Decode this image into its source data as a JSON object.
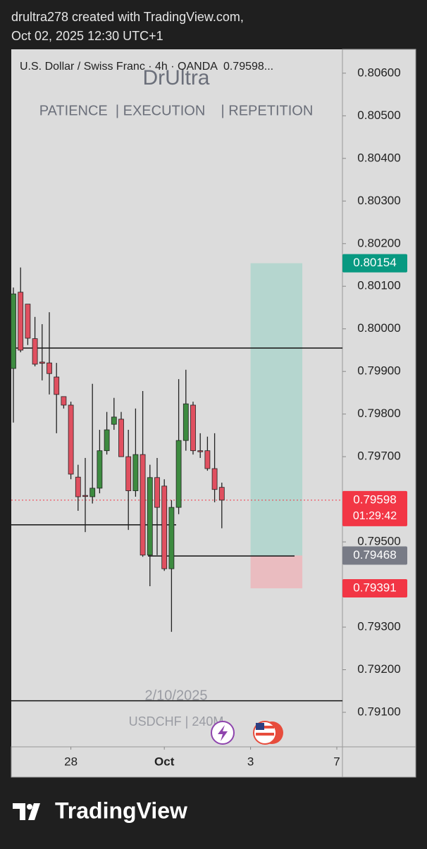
{
  "header": {
    "line1": "drultra278 created with TradingView.com,",
    "line2": "Oct 02, 2025 12:30 UTC+1"
  },
  "footer": {
    "brand": "TradingView"
  },
  "chart_data": {
    "type": "candlestick",
    "title": "U.S. Dollar / Swiss Franc · 4h · OANDA  0.79598...",
    "watermark": {
      "name": "DrUltra",
      "motto": "PATIENCE  | EXECUTION    | REPETITION",
      "date": "2/10/2025",
      "symbol": "USDCHF | 240M"
    },
    "up_color": "#26a69a",
    "down_color": "#f23645",
    "body_up": "#3d8b40",
    "body_down": "#e05060",
    "candles": [
      {
        "open": 0.79907,
        "high": 0.80097,
        "low": 0.7978,
        "close": 0.80082
      },
      {
        "open": 0.80086,
        "high": 0.80144,
        "low": 0.79945,
        "close": 0.7995
      },
      {
        "open": 0.80058,
        "high": 0.80058,
        "low": 0.79962,
        "close": 0.79978
      },
      {
        "open": 0.79977,
        "high": 0.80028,
        "low": 0.79912,
        "close": 0.79917
      },
      {
        "open": 0.79922,
        "high": 0.80011,
        "low": 0.79879,
        "close": 0.79919
      },
      {
        "open": 0.7992,
        "high": 0.80039,
        "low": 0.79846,
        "close": 0.79895
      },
      {
        "open": 0.79887,
        "high": 0.7992,
        "low": 0.79755,
        "close": 0.79846
      },
      {
        "open": 0.79841,
        "high": 0.79841,
        "low": 0.79813,
        "close": 0.79821
      },
      {
        "open": 0.79821,
        "high": 0.79829,
        "low": 0.79647,
        "close": 0.79659
      },
      {
        "open": 0.79652,
        "high": 0.79681,
        "low": 0.79573,
        "close": 0.79606
      },
      {
        "open": 0.79609,
        "high": 0.79697,
        "low": 0.79523,
        "close": 0.79608
      },
      {
        "open": 0.79606,
        "high": 0.79871,
        "low": 0.7959,
        "close": 0.79626
      },
      {
        "open": 0.79626,
        "high": 0.79763,
        "low": 0.79614,
        "close": 0.79714
      },
      {
        "open": 0.79714,
        "high": 0.79805,
        "low": 0.79705,
        "close": 0.79763
      },
      {
        "open": 0.79776,
        "high": 0.79838,
        "low": 0.79763,
        "close": 0.79793
      },
      {
        "open": 0.79788,
        "high": 0.79805,
        "low": 0.797,
        "close": 0.797
      },
      {
        "open": 0.797,
        "high": 0.79763,
        "low": 0.79528,
        "close": 0.7962
      },
      {
        "open": 0.7962,
        "high": 0.79813,
        "low": 0.79606,
        "close": 0.79705
      },
      {
        "open": 0.79705,
        "high": 0.79854,
        "low": 0.79465,
        "close": 0.79469
      },
      {
        "open": 0.79469,
        "high": 0.79681,
        "low": 0.79396,
        "close": 0.79651
      },
      {
        "open": 0.79651,
        "high": 0.79697,
        "low": 0.79469,
        "close": 0.79581
      },
      {
        "open": 0.79631,
        "high": 0.79647,
        "low": 0.79432,
        "close": 0.79437
      },
      {
        "open": 0.79437,
        "high": 0.79598,
        "low": 0.79289,
        "close": 0.79581
      },
      {
        "open": 0.79581,
        "high": 0.79882,
        "low": 0.79565,
        "close": 0.79738
      },
      {
        "open": 0.79738,
        "high": 0.79904,
        "low": 0.79714,
        "close": 0.79824
      },
      {
        "open": 0.79821,
        "high": 0.79829,
        "low": 0.79705,
        "close": 0.79714
      },
      {
        "open": 0.79714,
        "high": 0.79755,
        "low": 0.79697,
        "close": 0.79712
      },
      {
        "open": 0.79714,
        "high": 0.79747,
        "low": 0.79667,
        "close": 0.79672
      },
      {
        "open": 0.79672,
        "high": 0.79755,
        "low": 0.79593,
        "close": 0.79623
      },
      {
        "open": 0.79628,
        "high": 0.79639,
        "low": 0.79532,
        "close": 0.79598
      }
    ],
    "xticks": [
      {
        "value": 8,
        "label": "28"
      },
      {
        "value": 21,
        "label": "Oct"
      },
      {
        "value": 33,
        "label": "3"
      },
      {
        "value": 45,
        "label": "7"
      }
    ],
    "ylim": [
      0.79019,
      0.80656
    ],
    "yticks": [
      {
        "value": 0.806,
        "label": "0.80600"
      },
      {
        "value": 0.805,
        "label": "0.80500"
      },
      {
        "value": 0.804,
        "label": "0.80400"
      },
      {
        "value": 0.803,
        "label": "0.80300"
      },
      {
        "value": 0.802,
        "label": "0.80200"
      },
      {
        "value": 0.801,
        "label": "0.80100"
      },
      {
        "value": 0.8,
        "label": "0.80000"
      },
      {
        "value": 0.799,
        "label": "0.79900"
      },
      {
        "value": 0.798,
        "label": "0.79800"
      },
      {
        "value": 0.797,
        "label": "0.79700"
      },
      {
        "value": 0.795,
        "label": "0.79500"
      },
      {
        "value": 0.793,
        "label": "0.79300"
      },
      {
        "value": 0.792,
        "label": "0.79200"
      },
      {
        "value": 0.791,
        "label": "0.79100"
      }
    ],
    "hlines": [
      0.79955,
      0.7954,
      0.79467,
      0.79127
    ],
    "last_price": {
      "value": 0.79598,
      "label": "0.79598",
      "countdown": "01:29:42",
      "color": "#f23645"
    },
    "position": {
      "target": {
        "value": 0.80154,
        "label": "0.80154",
        "color": "#089981"
      },
      "entry": {
        "value": 0.79468,
        "label": "0.79468",
        "color": "#787b86"
      },
      "stop": {
        "value": 0.79391,
        "label": "0.79391",
        "color": "#f23645"
      }
    }
  }
}
